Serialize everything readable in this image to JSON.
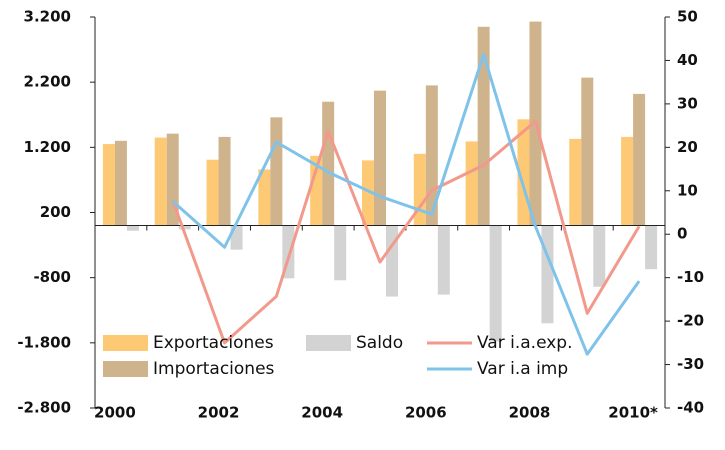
{
  "chart_data": {
    "type": "bar",
    "categories": [
      "2000",
      null,
      "2002",
      null,
      "2004",
      null,
      "2006",
      null,
      "2008",
      null,
      "2010*"
    ],
    "series": [
      {
        "name": "Exportaciones",
        "color": "#fdc974",
        "values": [
          1250,
          1350,
          1010,
          860,
          1070,
          1000,
          1100,
          1290,
          1630,
          1330,
          1360
        ]
      },
      {
        "name": "Importaciones",
        "color": "#cfb38d",
        "values": [
          1300,
          1410,
          1360,
          1660,
          1900,
          2070,
          2150,
          3050,
          3130,
          2270,
          2020
        ]
      },
      {
        "name": "Saldo",
        "color": "#d3d3d3",
        "values": [
          -80,
          -60,
          -370,
          -810,
          -840,
          -1090,
          -1060,
          -1780,
          -1500,
          -940,
          -670
        ]
      },
      {
        "name": "Var i.a.exp.",
        "color": "#f2998c",
        "axis": "y2",
        "values": [
          null,
          7.8,
          -25,
          -14.3,
          23.7,
          -6.4,
          10.1,
          15.9,
          26,
          -18.2,
          1.8
        ]
      },
      {
        "name": "Var i.a imp",
        "color": "#7fc3ea",
        "axis": "y2",
        "values": [
          null,
          7.6,
          -3,
          21.2,
          14.3,
          8.7,
          4.6,
          41.4,
          1.8,
          -27.6,
          -10.8
        ]
      }
    ],
    "ylim": [
      -2800,
      3200
    ],
    "yticks": [
      {
        "value": 3200,
        "label": "3.200"
      },
      {
        "value": 2200,
        "label": "2.200"
      },
      {
        "value": 1200,
        "label": "1.200"
      },
      200,
      -800,
      {
        "value": -1800,
        "label": "-1.800"
      },
      {
        "value": -2800,
        "label": "-2.800"
      }
    ],
    "y2lim": [
      -40,
      50
    ],
    "y2ticks": [
      50,
      40,
      30,
      20,
      10,
      0,
      -10,
      -20,
      -30,
      -40
    ],
    "legend": "bottom-left"
  }
}
